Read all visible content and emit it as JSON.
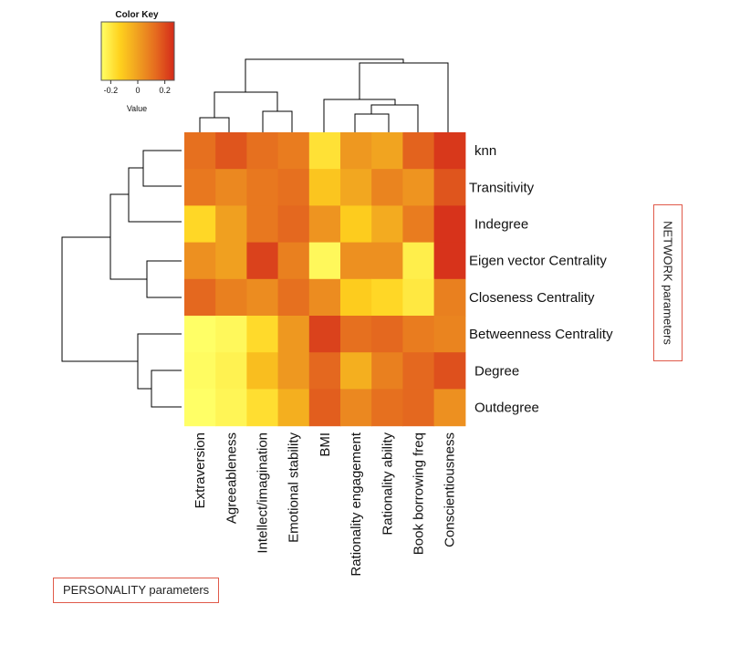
{
  "chart_data": {
    "type": "heatmap",
    "title": "",
    "color_key": {
      "title": "Color Key",
      "xlabel": "Value",
      "ticks": [
        "-0.2",
        "0",
        "0.2"
      ],
      "tick_values": [
        -0.2,
        0,
        0.2
      ],
      "range": [
        -0.27,
        0.27
      ],
      "colors": [
        "#ffff66",
        "#ffd21e",
        "#f0a020",
        "#e56a1f",
        "#d42a1a"
      ]
    },
    "rows": [
      "knn",
      "Transitivity",
      "Indegree",
      "Eigen vector Centrality",
      "Closeness Centrality",
      "Betweenness Centrality",
      "Degree",
      "Outdegree"
    ],
    "columns": [
      "Extraversion",
      "Agreeableness",
      "Intellect/imagination",
      "Emotional stability",
      "BMI",
      "Rationality engagement",
      "Rationality ability",
      "Book borrowing freq",
      "Conscientiousness"
    ],
    "values": [
      [
        0.12,
        0.18,
        0.12,
        0.09,
        -0.18,
        0.02,
        -0.01,
        0.15,
        0.24
      ],
      [
        0.1,
        0.06,
        0.1,
        0.12,
        -0.1,
        -0.02,
        0.07,
        0.03,
        0.18
      ],
      [
        -0.15,
        0.0,
        0.1,
        0.14,
        0.03,
        -0.12,
        -0.03,
        0.09,
        0.25
      ],
      [
        0.04,
        0.0,
        0.22,
        0.08,
        -0.25,
        0.04,
        0.04,
        -0.22,
        0.25
      ],
      [
        0.14,
        0.08,
        0.05,
        0.12,
        0.05,
        -0.12,
        -0.15,
        -0.2,
        0.08
      ],
      [
        -0.27,
        -0.25,
        -0.16,
        0.02,
        0.22,
        0.12,
        0.14,
        0.09,
        0.07
      ],
      [
        -0.26,
        -0.23,
        -0.08,
        0.02,
        0.14,
        -0.04,
        0.08,
        0.14,
        0.19
      ],
      [
        -0.27,
        -0.24,
        -0.17,
        -0.04,
        0.16,
        0.06,
        0.12,
        0.14,
        0.04
      ]
    ],
    "grid": false
  },
  "annotations": {
    "personality_label": "PERSONALITY parameters",
    "network_label": "NETWORK parameters"
  }
}
